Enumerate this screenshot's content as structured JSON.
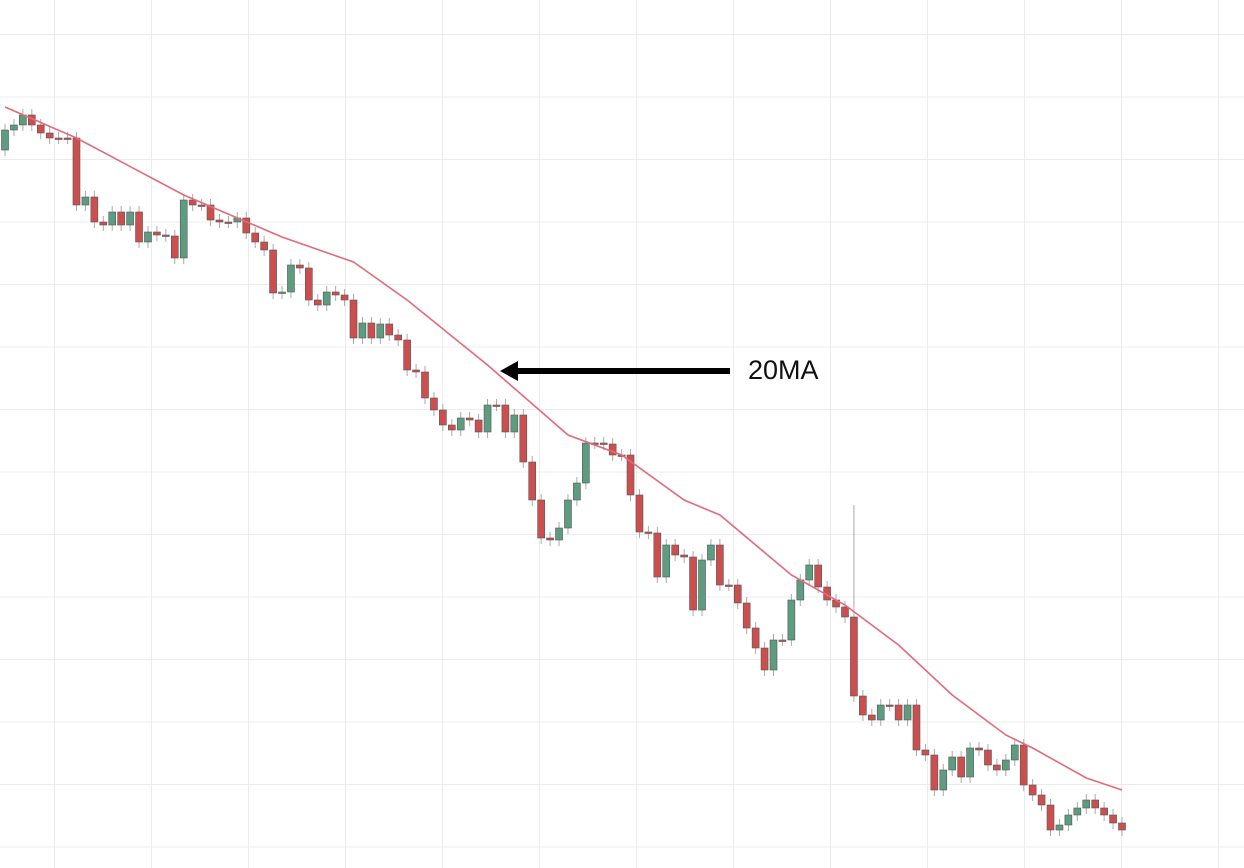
{
  "chart_data": {
    "type": "candlestick",
    "annotation": "20MA",
    "up_color": "#5d9c80",
    "down_color": "#cc4f4f",
    "ma_color": "#e46a7a",
    "ylim": [
      0,
      868
    ],
    "categories": [
      null,
      null,
      null,
      null,
      null,
      null,
      null,
      null,
      null,
      null,
      null,
      null,
      null,
      null,
      null,
      null,
      null,
      null,
      null,
      null,
      null,
      null,
      null,
      null,
      null,
      null,
      null,
      null,
      null,
      null,
      null,
      null,
      null,
      null,
      null,
      null,
      null,
      null,
      null,
      null,
      null,
      null,
      null,
      null,
      null,
      null,
      null,
      null,
      null,
      null,
      null,
      null,
      null,
      null,
      null,
      null,
      null,
      null,
      null,
      null,
      null,
      null,
      null,
      null,
      null,
      null,
      null,
      null,
      null,
      null,
      null,
      null,
      null,
      null,
      null,
      null,
      null,
      null,
      null,
      null,
      null,
      null,
      null,
      null,
      null,
      null,
      null,
      null,
      null,
      null,
      null,
      null,
      null,
      null,
      null,
      null,
      null,
      null,
      null,
      null,
      null,
      null,
      null,
      null,
      null,
      null,
      null,
      null,
      null,
      null,
      null,
      null,
      null,
      null,
      null,
      null,
      null,
      null,
      null,
      null,
      null,
      null,
      null,
      null,
      null,
      null
    ],
    "open": [
      718,
      738,
      743,
      753,
      743,
      735,
      730,
      730,
      730,
      663,
      671,
      646,
      643,
      656,
      643,
      656,
      626,
      636,
      633,
      632,
      610,
      668,
      663,
      663,
      648,
      646,
      646,
      650,
      635,
      626,
      618,
      575,
      576,
      603,
      600,
      568,
      563,
      576,
      573,
      568,
      530,
      545,
      530,
      544,
      533,
      528,
      498,
      496,
      470,
      458,
      443,
      438,
      450,
      448,
      436,
      463,
      463,
      436,
      453,
      406,
      368,
      330,
      328,
      340,
      368,
      385,
      425,
      425,
      424,
      413,
      413,
      373,
      336,
      335,
      291,
      323,
      313,
      311,
      258,
      308,
      323,
      283,
      283,
      265,
      240,
      220,
      198,
      228,
      228,
      268,
      288,
      303,
      281,
      268,
      261,
      251,
      172,
      153,
      148,
      163,
      163,
      148,
      163,
      118,
      113,
      78,
      98,
      111,
      91,
      120,
      118,
      103,
      98,
      108,
      123,
      83,
      73,
      63,
      38,
      43,
      53,
      60,
      68,
      60,
      53,
      45
    ],
    "high": [
      744,
      749,
      759,
      759,
      749,
      741,
      736,
      736,
      736,
      677,
      677,
      652,
      662,
      662,
      662,
      662,
      642,
      642,
      639,
      638,
      674,
      674,
      669,
      669,
      654,
      652,
      656,
      656,
      641,
      632,
      624,
      582,
      609,
      609,
      606,
      574,
      582,
      582,
      579,
      574,
      551,
      551,
      550,
      550,
      539,
      534,
      504,
      502,
      476,
      464,
      449,
      456,
      456,
      454,
      469,
      469,
      469,
      459,
      459,
      412,
      374,
      336,
      346,
      374,
      391,
      431,
      431,
      431,
      430,
      419,
      419,
      379,
      342,
      341,
      329,
      329,
      319,
      317,
      314,
      329,
      329,
      289,
      289,
      271,
      246,
      226,
      234,
      234,
      274,
      294,
      309,
      309,
      287,
      274,
      267,
      363,
      178,
      159,
      169,
      169,
      169,
      169,
      169,
      124,
      119,
      104,
      117,
      117,
      126,
      126,
      124,
      109,
      114,
      129,
      129,
      89,
      79,
      69,
      49,
      59,
      66,
      74,
      74,
      66,
      59,
      51
    ],
    "low": [
      712,
      732,
      737,
      737,
      729,
      724,
      724,
      724,
      657,
      657,
      640,
      637,
      637,
      637,
      637,
      620,
      620,
      627,
      626,
      604,
      604,
      657,
      657,
      642,
      640,
      640,
      640,
      629,
      620,
      612,
      569,
      569,
      570,
      594,
      562,
      557,
      557,
      567,
      562,
      524,
      524,
      524,
      524,
      527,
      522,
      492,
      490,
      464,
      452,
      437,
      432,
      432,
      442,
      430,
      430,
      457,
      430,
      430,
      400,
      362,
      324,
      322,
      322,
      334,
      362,
      379,
      419,
      418,
      407,
      407,
      367,
      330,
      329,
      285,
      285,
      307,
      305,
      252,
      252,
      302,
      277,
      277,
      259,
      234,
      214,
      192,
      192,
      222,
      222,
      262,
      282,
      275,
      262,
      255,
      245,
      166,
      147,
      142,
      142,
      157,
      142,
      142,
      112,
      107,
      72,
      72,
      92,
      85,
      85,
      112,
      97,
      92,
      92,
      102,
      77,
      67,
      57,
      32,
      32,
      37,
      47,
      54,
      54,
      47,
      39,
      32
    ],
    "close": [
      738,
      743,
      753,
      743,
      735,
      730,
      730,
      730,
      663,
      671,
      646,
      643,
      656,
      643,
      656,
      626,
      636,
      633,
      632,
      610,
      668,
      663,
      663,
      648,
      646,
      646,
      650,
      635,
      626,
      618,
      575,
      576,
      603,
      600,
      568,
      563,
      576,
      573,
      568,
      530,
      545,
      530,
      544,
      533,
      528,
      498,
      496,
      470,
      458,
      443,
      438,
      450,
      448,
      436,
      463,
      463,
      436,
      453,
      406,
      368,
      330,
      328,
      340,
      368,
      385,
      425,
      425,
      424,
      413,
      413,
      373,
      336,
      335,
      291,
      323,
      313,
      311,
      258,
      308,
      323,
      283,
      283,
      265,
      240,
      220,
      198,
      228,
      228,
      268,
      288,
      303,
      281,
      268,
      261,
      251,
      172,
      153,
      148,
      163,
      163,
      148,
      163,
      118,
      113,
      78,
      98,
      111,
      91,
      120,
      118,
      103,
      98,
      108,
      123,
      83,
      73,
      63,
      38,
      43,
      53,
      60,
      68,
      60,
      53,
      45,
      38
    ],
    "ma": {
      "x": [
        0,
        8,
        20,
        31,
        39,
        45,
        54,
        63,
        69,
        76,
        80,
        88,
        94,
        100,
        106,
        112,
        115,
        121,
        125
      ],
      "values": [
        761,
        730,
        673,
        631,
        606,
        568,
        503,
        433,
        413,
        368,
        353,
        293,
        263,
        223,
        173,
        133,
        120,
        90,
        78
      ]
    }
  }
}
